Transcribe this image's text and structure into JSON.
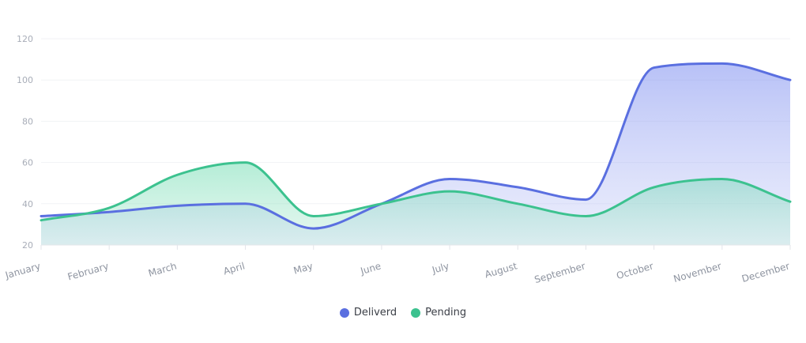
{
  "chart_data": {
    "type": "area",
    "categories": [
      "January",
      "February",
      "March",
      "April",
      "May",
      "June",
      "July",
      "August",
      "September",
      "October",
      "November",
      "December"
    ],
    "series": [
      {
        "name": "Deliverd",
        "color": "#5a6fe0",
        "values": [
          34,
          36,
          39,
          40,
          28,
          40,
          52,
          48,
          42,
          106,
          108,
          100
        ]
      },
      {
        "name": "Pending",
        "color": "#3cc28f",
        "values": [
          32,
          38,
          54,
          60,
          34,
          40,
          46,
          40,
          34,
          48,
          52,
          41
        ]
      }
    ],
    "ylim": [
      20,
      120
    ],
    "yticks": [
      20,
      40,
      60,
      80,
      100,
      120
    ],
    "grid": true,
    "legend": "bottom-center"
  }
}
